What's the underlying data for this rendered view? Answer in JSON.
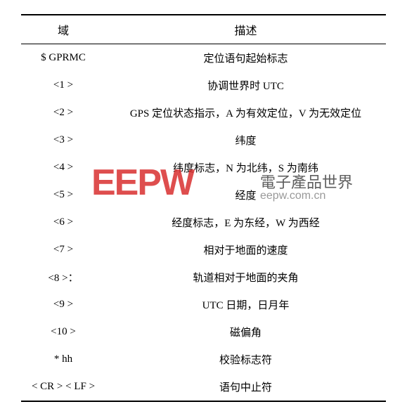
{
  "table": {
    "header": {
      "field": "域",
      "desc": "描述"
    },
    "rows": [
      {
        "field": "$ GPRMC",
        "desc": "定位语句起始标志"
      },
      {
        "field": "<1 >",
        "desc": "协调世界时 UTC"
      },
      {
        "field": "<2 >",
        "desc": "GPS 定位状态指示，A 为有效定位，V 为无效定位"
      },
      {
        "field": "<3 >",
        "desc": "纬度"
      },
      {
        "field": "<4 >",
        "desc": "纬度标志，N 为北纬，S 为南纬"
      },
      {
        "field": "<5 >",
        "desc": "经度"
      },
      {
        "field": "<6 >",
        "desc": "经度标志，E 为东经，W 为西经"
      },
      {
        "field": "<7 >",
        "desc": "相对于地面的速度"
      },
      {
        "field": "<8 >：",
        "desc": "轨道相对于地面的夹角"
      },
      {
        "field": "<9 >",
        "desc": "UTC 日期，日月年"
      },
      {
        "field": "<10 >",
        "desc": "磁偏角"
      },
      {
        "field": "* hh",
        "desc": "校验标志符"
      },
      {
        "field": "< CR > < LF >",
        "desc": "语句中止符"
      }
    ]
  },
  "watermark": {
    "logo": "EEPW",
    "cn": "電子產品世界",
    "url": "eepw.com.cn"
  }
}
